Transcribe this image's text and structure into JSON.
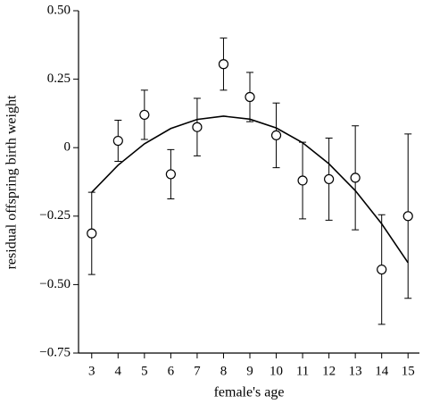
{
  "chart_data": {
    "type": "scatter",
    "x_label": "female's age",
    "y_label": "residual offspring birth weight",
    "x": [
      3,
      4,
      5,
      6,
      7,
      8,
      9,
      10,
      11,
      12,
      13,
      14,
      15
    ],
    "series": [
      {
        "kind": "points",
        "color": "#000000",
        "values": [
          -0.313,
          0.025,
          0.12,
          -0.097,
          0.075,
          0.305,
          0.185,
          0.045,
          -0.12,
          -0.115,
          -0.11,
          -0.445,
          -0.25
        ],
        "errors": [
          0.15,
          0.075,
          0.09,
          0.09,
          0.105,
          0.095,
          0.09,
          0.118,
          0.14,
          0.15,
          0.19,
          0.2,
          0.3
        ]
      },
      {
        "kind": "line",
        "color": "#000000",
        "values": [
          -0.163,
          -0.064,
          0.014,
          0.07,
          0.103,
          0.115,
          0.104,
          0.072,
          0.018,
          -0.059,
          -0.157,
          -0.278,
          -0.42
        ]
      }
    ],
    "xlim": [
      2.5,
      15.5
    ],
    "ylim": [
      -0.75,
      0.5
    ],
    "xticks": [
      3,
      4,
      5,
      6,
      7,
      8,
      9,
      10,
      11,
      12,
      13,
      14,
      15
    ],
    "yticks": [
      {
        "value": 0.5,
        "label": "0.50"
      },
      {
        "value": 0.25,
        "label": "0.25"
      },
      0,
      {
        "value": -0.25,
        "label": "−0.25"
      },
      {
        "value": -0.5,
        "label": "−0.50"
      },
      {
        "value": -0.75,
        "label": "−0.75"
      }
    ]
  }
}
